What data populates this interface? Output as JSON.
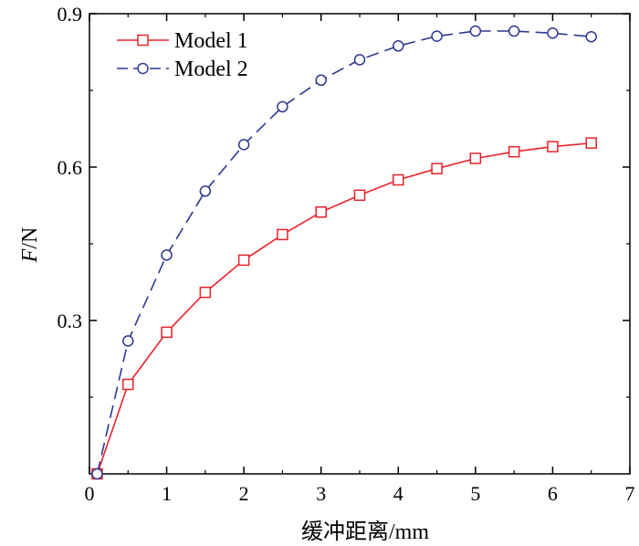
{
  "chart_data": {
    "type": "line",
    "title": "",
    "xlabel": "缓冲距离/mm",
    "ylabel_italic": "F",
    "ylabel_unit": "/N",
    "xlim": [
      0,
      7
    ],
    "ylim": [
      0,
      0.9
    ],
    "x_ticks": [
      0,
      1,
      2,
      3,
      4,
      5,
      6,
      7
    ],
    "x_tick_labels": [
      "0",
      "1",
      "2",
      "3",
      "4",
      "5",
      "6",
      "7"
    ],
    "y_ticks": [
      0.3,
      0.6,
      0.9
    ],
    "y_tick_labels": [
      "0.3",
      "0.6",
      "0.9"
    ],
    "grid": false,
    "legend_position": "top-left",
    "x": [
      0.1,
      0.5,
      1.0,
      1.5,
      2.0,
      2.5,
      3.0,
      3.5,
      4.0,
      4.5,
      5.0,
      5.5,
      6.0,
      6.5
    ],
    "series": [
      {
        "name": "Model 1",
        "color": "#e8232a",
        "marker": "square",
        "line_style": "solid",
        "values": [
          0.0,
          0.175,
          0.277,
          0.355,
          0.418,
          0.468,
          0.512,
          0.545,
          0.575,
          0.597,
          0.617,
          0.63,
          0.64,
          0.647
        ]
      },
      {
        "name": "Model 2",
        "color": "#2b3990",
        "marker": "circle",
        "line_style": "dashed",
        "values": [
          0.0,
          0.26,
          0.428,
          0.553,
          0.644,
          0.718,
          0.77,
          0.81,
          0.837,
          0.856,
          0.866,
          0.866,
          0.862,
          0.855
        ]
      }
    ]
  }
}
